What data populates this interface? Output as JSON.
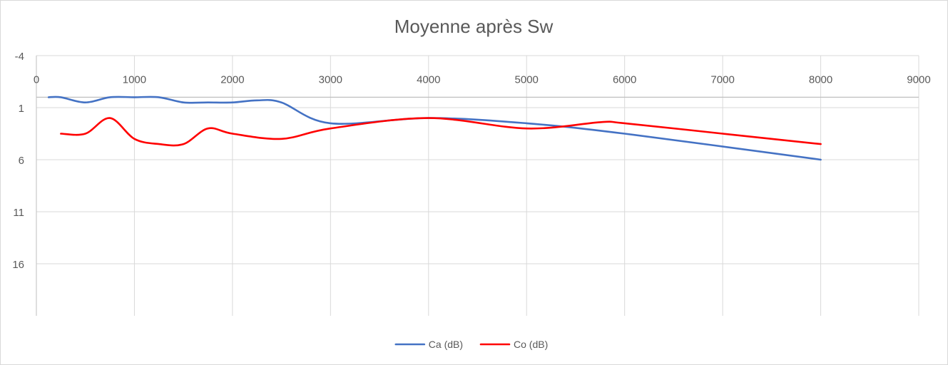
{
  "chart_data": {
    "type": "line",
    "title": "Moyenne après Sw",
    "xlabel": "",
    "ylabel": "",
    "x_ticks": [
      "0",
      "1000",
      "2000",
      "3000",
      "4000",
      "5000",
      "6000",
      "7000",
      "8000",
      "9000"
    ],
    "y_ticks": [
      "-4",
      "1",
      "6",
      "11",
      "16"
    ],
    "xlim": [
      0,
      9000
    ],
    "ylim": [
      -4,
      21
    ],
    "y_reversed": true,
    "x_axis_crosses_at": 0,
    "grid": true,
    "legend_position": "bottom",
    "series": [
      {
        "name": "Ca (dB)",
        "color": "#4472c4",
        "smooth": true,
        "points": [
          [
            125,
            0.0
          ],
          [
            250,
            0.0
          ],
          [
            500,
            0.5
          ],
          [
            750,
            0.0
          ],
          [
            1000,
            0.0
          ],
          [
            1250,
            0.0
          ],
          [
            1500,
            0.5
          ],
          [
            1750,
            0.5
          ],
          [
            2000,
            0.5
          ],
          [
            2250,
            0.3
          ],
          [
            2500,
            0.5
          ],
          [
            3000,
            2.5
          ],
          [
            4000,
            2.0
          ],
          [
            5000,
            2.5
          ],
          [
            6000,
            3.5
          ],
          [
            8000,
            6.0
          ]
        ]
      },
      {
        "name": "Co (dB)",
        "color": "#ff0000",
        "smooth": true,
        "points": [
          [
            250,
            3.5
          ],
          [
            500,
            3.5
          ],
          [
            750,
            2.0
          ],
          [
            1000,
            4.0
          ],
          [
            1250,
            4.5
          ],
          [
            1500,
            4.5
          ],
          [
            1750,
            3.0
          ],
          [
            2000,
            3.5
          ],
          [
            2500,
            4.0
          ],
          [
            3000,
            3.0
          ],
          [
            4000,
            2.0
          ],
          [
            5000,
            3.0
          ],
          [
            5750,
            2.4
          ],
          [
            6000,
            2.5
          ],
          [
            7000,
            3.5
          ],
          [
            8000,
            4.5
          ]
        ]
      }
    ]
  }
}
